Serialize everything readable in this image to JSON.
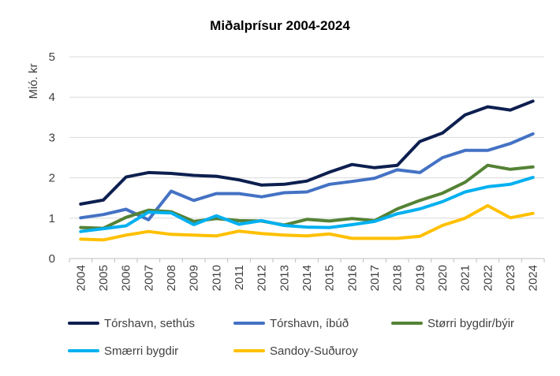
{
  "chart_data": {
    "type": "line",
    "title": "Miðalprísur 2004-2024",
    "ylabel": "Mió. kr",
    "xlabel": "",
    "x": [
      "2004",
      "2005",
      "2006",
      "2007",
      "2008",
      "2009",
      "2010",
      "2011",
      "2012",
      "2013",
      "2014",
      "2015",
      "2016",
      "2017",
      "2018",
      "2019",
      "2020",
      "2021",
      "2022",
      "2023",
      "2024"
    ],
    "ylim": [
      0,
      5
    ],
    "yticks": [
      "0",
      "1",
      "2",
      "3",
      "4",
      "5"
    ],
    "grid": true,
    "legend_position": "bottom",
    "series": [
      {
        "name": "Tórshavn, sethús",
        "color": "#0d1f4f",
        "values": [
          1.35,
          1.45,
          2.02,
          2.13,
          2.11,
          2.06,
          2.04,
          1.95,
          1.82,
          1.84,
          1.92,
          2.14,
          2.33,
          2.25,
          2.31,
          2.9,
          3.11,
          3.56,
          3.76,
          3.68,
          3.9
        ]
      },
      {
        "name": "Tórshavn, íbúð",
        "color": "#4472c4",
        "values": [
          1.01,
          1.09,
          1.22,
          0.96,
          1.67,
          1.44,
          1.61,
          1.61,
          1.53,
          1.63,
          1.65,
          1.84,
          1.91,
          1.99,
          2.2,
          2.13,
          2.5,
          2.68,
          2.68,
          2.85,
          3.09
        ]
      },
      {
        "name": "Størri bygdir/býir",
        "color": "#548235",
        "values": [
          0.77,
          0.75,
          1.02,
          1.2,
          1.16,
          0.92,
          0.99,
          0.94,
          0.93,
          0.83,
          0.97,
          0.93,
          0.99,
          0.94,
          1.23,
          1.44,
          1.62,
          1.89,
          2.31,
          2.21,
          2.27
        ]
      },
      {
        "name": "Smærri bygdir",
        "color": "#00b0f0",
        "values": [
          0.67,
          0.74,
          0.81,
          1.15,
          1.13,
          0.84,
          1.06,
          0.85,
          0.94,
          0.82,
          0.78,
          0.77,
          0.84,
          0.92,
          1.11,
          1.23,
          1.41,
          1.65,
          1.78,
          1.84,
          2.01
        ]
      },
      {
        "name": "Sandoy-Suðuroy",
        "color": "#ffc000",
        "values": [
          0.48,
          0.46,
          0.58,
          0.67,
          0.6,
          0.58,
          0.56,
          0.68,
          0.62,
          0.58,
          0.56,
          0.61,
          0.5,
          0.5,
          0.5,
          0.55,
          0.82,
          1.0,
          1.31,
          1.01,
          1.12
        ]
      }
    ]
  }
}
